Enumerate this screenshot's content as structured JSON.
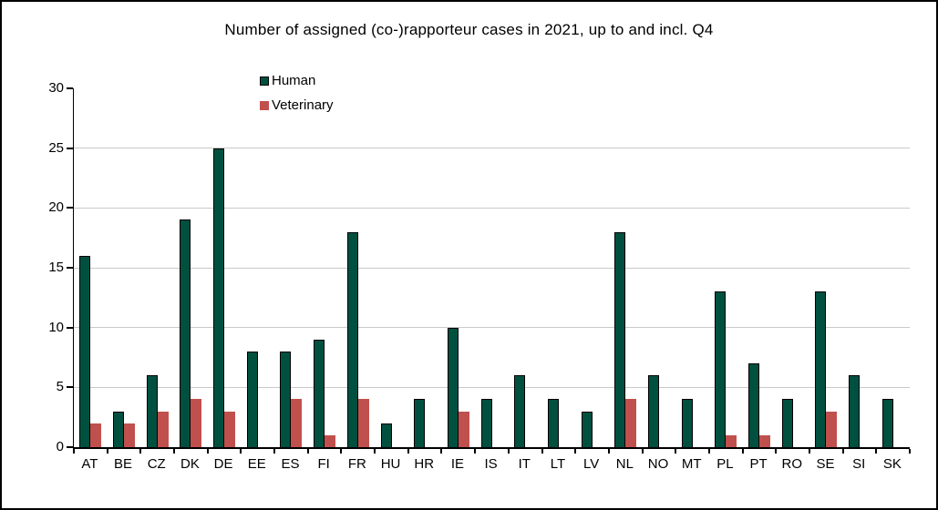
{
  "chart_data": {
    "type": "bar",
    "title": "Number of assigned (co-)rapporteur cases in 2021, up to and incl. Q4",
    "categories": [
      "AT",
      "BE",
      "CZ",
      "DK",
      "DE",
      "EE",
      "ES",
      "FI",
      "FR",
      "HU",
      "HR",
      "IE",
      "IS",
      "IT",
      "LT",
      "LV",
      "NL",
      "NO",
      "MT",
      "PL",
      "PT",
      "RO",
      "SE",
      "SI",
      "SK"
    ],
    "series": [
      {
        "name": "Human",
        "color": "#005040",
        "border_color": "#000000",
        "values": [
          16,
          3,
          6,
          19,
          25,
          8,
          8,
          9,
          18,
          2,
          4,
          10,
          4,
          6,
          4,
          3,
          18,
          6,
          4,
          13,
          7,
          4,
          13,
          6,
          4
        ]
      },
      {
        "name": "Veterinary",
        "color": "#C0504D",
        "border_color": "#C0504D",
        "values": [
          2,
          2,
          3,
          4,
          3,
          0,
          4,
          1,
          4,
          0,
          0,
          3,
          0,
          0,
          0,
          0,
          4,
          0,
          0,
          1,
          1,
          0,
          3,
          0,
          0
        ]
      }
    ],
    "xlabel": "",
    "ylabel": "",
    "ylim": [
      0,
      30
    ],
    "yticks": [
      0,
      5,
      10,
      15,
      20,
      25,
      30
    ],
    "grid": "horizontal",
    "gridline_color": "#C9C9C9",
    "axis_color": "#000000",
    "legend_position": "inside-top-left",
    "background_color": "#FFFFFF",
    "frame_border_color": "#000000"
  }
}
